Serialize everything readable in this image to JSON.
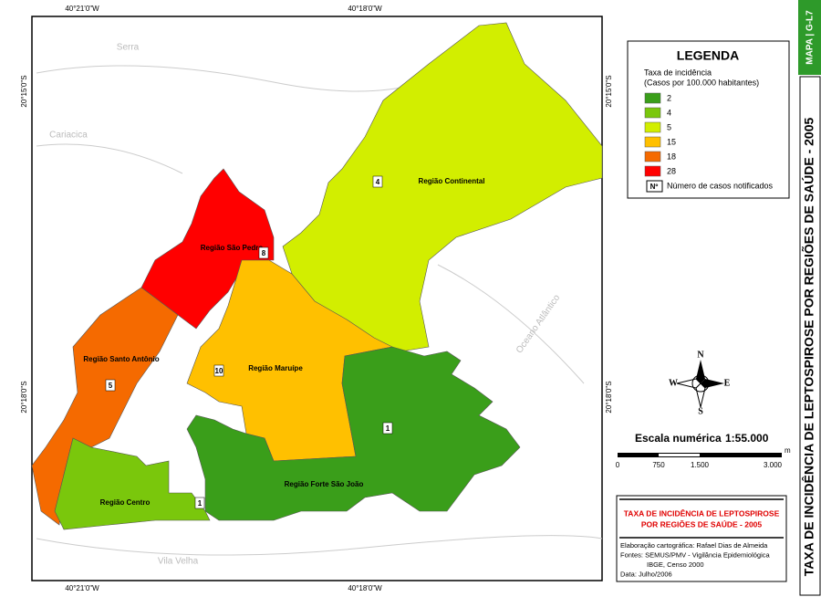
{
  "map": {
    "lon_labels": [
      "40°21'0\"W",
      "40°18'0\"W"
    ],
    "lat_labels": [
      "20°15'0\"S",
      "20°18'0\"S"
    ],
    "place_labels": [
      "Serra",
      "Cariacica",
      "Vila Velha",
      "Oceano Atlântico"
    ],
    "regions": [
      {
        "name": "Região Continental",
        "cases": 4,
        "color": "#d2ee00"
      },
      {
        "name": "Região São Pedro",
        "cases": 8,
        "color": "#ff0000"
      },
      {
        "name": "Região Maruípe",
        "cases": 10,
        "color": "#ffc000"
      },
      {
        "name": "Região Santo Antônio",
        "cases": 5,
        "color": "#f56a00"
      },
      {
        "name": "Região Centro",
        "cases": 1,
        "color": "#7ac70c"
      },
      {
        "name": "Região Forte São João",
        "cases": 1,
        "color": "#3a9e1a"
      }
    ]
  },
  "legend": {
    "title": "LEGENDA",
    "subtitle_lines": [
      "Taxa de incidência",
      "(Casos por 100.000 habitantes)"
    ],
    "items": [
      {
        "label": "2",
        "color": "#3a9e1a"
      },
      {
        "label": "4",
        "color": "#7ac70c"
      },
      {
        "label": "5",
        "color": "#d2ee00"
      },
      {
        "label": "15",
        "color": "#ffc000"
      },
      {
        "label": "18",
        "color": "#f56a00"
      },
      {
        "label": "28",
        "color": "#ff0000"
      }
    ],
    "cases_symbol": "Nº",
    "cases_label": "Número de casos notificados"
  },
  "badge": "MAPA | G-L7",
  "side_title": "TAXA DE INCIDÊNCIA DE LEPTOSPIROSE POR REGIÕES DE SAÚDE - 2005",
  "compass": {
    "n": "N",
    "s": "S",
    "e": "E",
    "w": "W"
  },
  "scale": {
    "label": "Escala numérica",
    "ratio": "1:55.000",
    "ticks": [
      "0",
      "750",
      "1.500",
      "3.000"
    ],
    "unit": "m"
  },
  "info": {
    "title_lines": [
      "TAXA DE INCIDÊNCIA DE LEPTOSPIROSE",
      "POR REGIÕES DE SAÚDE - 2005"
    ],
    "credits": [
      "Elaboração cartográfica: Rafael Dias de Almeida",
      "Fontes: SEMUS/PMV - Vigilância Epidemiológica",
      "IBGE, Censo 2000",
      "Data: Julho/2006"
    ]
  }
}
